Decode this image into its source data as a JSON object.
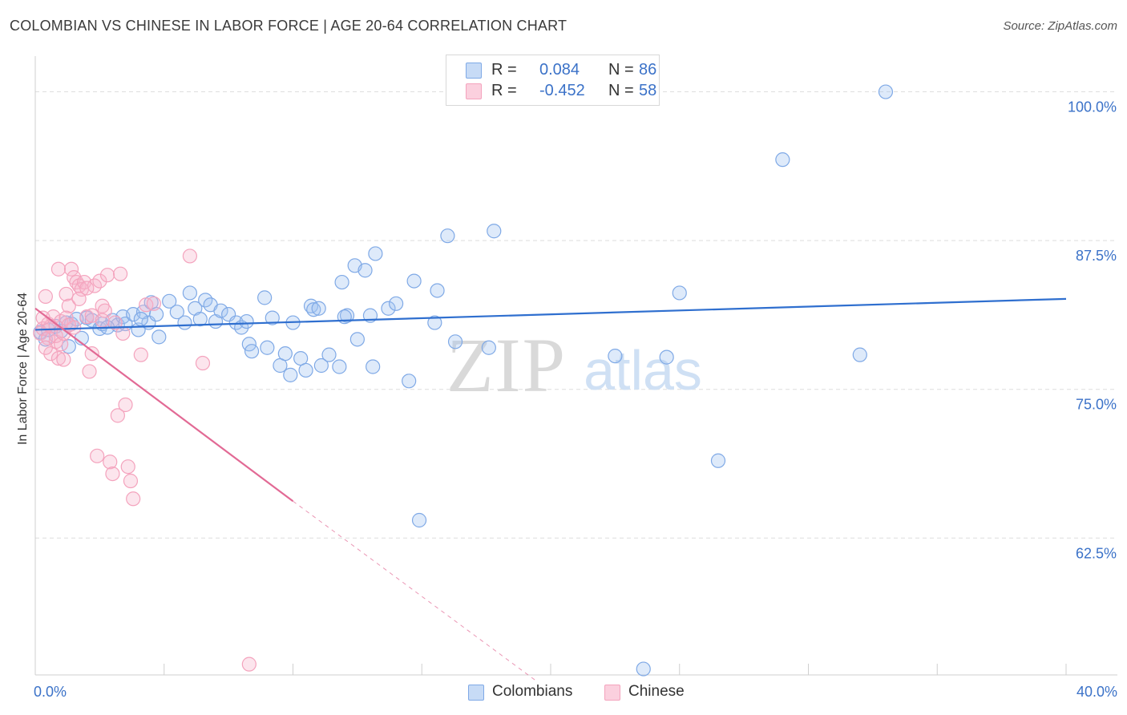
{
  "header": {
    "title": "COLOMBIAN VS CHINESE IN LABOR FORCE | AGE 20-64 CORRELATION CHART",
    "source": "Source: ZipAtlas.com"
  },
  "watermark": {
    "zip": "ZIP",
    "atlas": "atlas"
  },
  "legend_top": [
    {
      "r_label": "R =",
      "r_value": "0.084",
      "n_label": "N =",
      "n_value": "86"
    },
    {
      "r_label": "R =",
      "r_value": "-0.452",
      "n_label": "N =",
      "n_value": "58"
    }
  ],
  "legend_bottom": {
    "colombians": "Colombians",
    "chinese": "Chinese"
  },
  "chart_data": {
    "type": "scatter",
    "xlabel": "",
    "ylabel": "In Labor Force | Age 20-64",
    "xlim": [
      0,
      40
    ],
    "ylim": [
      51,
      103
    ],
    "x_tick_labels": [
      "0.0%",
      "40.0%"
    ],
    "y_ticks": [
      62.5,
      75.0,
      87.5,
      100.0
    ],
    "y_tick_labels": [
      "62.5%",
      "75.0%",
      "87.5%",
      "100.0%"
    ],
    "grid": true,
    "colors": {
      "colombians": "#7fa9e6",
      "chinese": "#f4a3bd",
      "trend_blue": "#2f6fcf",
      "trend_pink": "#e26a95",
      "tick_text": "#3b72c8"
    },
    "series": [
      {
        "name": "Colombians",
        "points": [
          [
            0.2,
            79.8
          ],
          [
            0.4,
            79.2
          ],
          [
            0.5,
            80.0
          ],
          [
            0.8,
            80.3
          ],
          [
            1.0,
            79.9
          ],
          [
            1.2,
            80.6
          ],
          [
            1.4,
            80.5
          ],
          [
            1.3,
            78.6
          ],
          [
            1.8,
            79.3
          ],
          [
            2.0,
            81.0
          ],
          [
            2.2,
            80.8
          ],
          [
            2.5,
            80.1
          ],
          [
            2.6,
            80.5
          ],
          [
            3.0,
            80.8
          ],
          [
            3.2,
            80.4
          ],
          [
            3.4,
            81.1
          ],
          [
            3.5,
            80.5
          ],
          [
            3.8,
            81.3
          ],
          [
            4.0,
            80.0
          ],
          [
            4.2,
            81.5
          ],
          [
            4.4,
            80.6
          ],
          [
            4.5,
            82.3
          ],
          [
            4.7,
            81.3
          ],
          [
            4.8,
            79.4
          ],
          [
            5.2,
            82.4
          ],
          [
            5.5,
            81.5
          ],
          [
            5.8,
            80.6
          ],
          [
            6.0,
            83.1
          ],
          [
            6.2,
            81.8
          ],
          [
            6.4,
            80.9
          ],
          [
            6.6,
            82.5
          ],
          [
            6.8,
            82.1
          ],
          [
            7.0,
            80.7
          ],
          [
            7.2,
            81.6
          ],
          [
            7.5,
            81.3
          ],
          [
            7.8,
            80.6
          ],
          [
            8.0,
            80.2
          ],
          [
            8.2,
            80.7
          ],
          [
            8.3,
            78.8
          ],
          [
            8.4,
            78.2
          ],
          [
            8.9,
            82.7
          ],
          [
            9.0,
            78.5
          ],
          [
            9.2,
            81.0
          ],
          [
            9.5,
            77.0
          ],
          [
            9.7,
            78.0
          ],
          [
            9.9,
            76.2
          ],
          [
            10.0,
            80.6
          ],
          [
            10.3,
            77.6
          ],
          [
            10.5,
            76.6
          ],
          [
            10.7,
            82.0
          ],
          [
            10.8,
            81.7
          ],
          [
            11.0,
            81.8
          ],
          [
            11.1,
            77.0
          ],
          [
            11.4,
            77.9
          ],
          [
            11.8,
            76.9
          ],
          [
            11.9,
            84.0
          ],
          [
            12.1,
            81.2
          ],
          [
            12.4,
            85.4
          ],
          [
            12.5,
            79.2
          ],
          [
            12.8,
            85.0
          ],
          [
            13.0,
            81.2
          ],
          [
            13.1,
            76.9
          ],
          [
            13.2,
            86.4
          ],
          [
            13.7,
            81.8
          ],
          [
            14.0,
            82.2
          ],
          [
            14.5,
            75.7
          ],
          [
            14.7,
            84.1
          ],
          [
            14.9,
            64.0
          ],
          [
            15.5,
            80.6
          ],
          [
            15.6,
            83.3
          ],
          [
            16.0,
            87.9
          ],
          [
            16.3,
            79.0
          ],
          [
            17.6,
            78.5
          ],
          [
            17.8,
            88.3
          ],
          [
            22.5,
            77.8
          ],
          [
            23.6,
            51.5
          ],
          [
            24.5,
            77.7
          ],
          [
            25.0,
            83.1
          ],
          [
            26.5,
            69.0
          ],
          [
            29.0,
            94.3
          ],
          [
            32.0,
            77.9
          ],
          [
            33.0,
            100.0
          ],
          [
            1.6,
            80.9
          ],
          [
            2.8,
            80.2
          ],
          [
            4.1,
            80.9
          ],
          [
            12.0,
            81.1
          ]
        ]
      },
      {
        "name": "Chinese",
        "points": [
          [
            0.2,
            79.7
          ],
          [
            0.3,
            80.1
          ],
          [
            0.4,
            82.8
          ],
          [
            0.5,
            80.5
          ],
          [
            0.6,
            78.0
          ],
          [
            0.7,
            81.1
          ],
          [
            0.8,
            79.0
          ],
          [
            0.9,
            77.6
          ],
          [
            0.9,
            85.1
          ],
          [
            1.0,
            80.7
          ],
          [
            1.1,
            77.5
          ],
          [
            1.2,
            83.0
          ],
          [
            1.3,
            82.0
          ],
          [
            1.4,
            85.1
          ],
          [
            1.5,
            84.4
          ],
          [
            1.6,
            84.0
          ],
          [
            1.7,
            83.7
          ],
          [
            1.8,
            83.4
          ],
          [
            1.9,
            84.0
          ],
          [
            2.0,
            81.1
          ],
          [
            2.1,
            76.5
          ],
          [
            2.2,
            78.0
          ],
          [
            2.3,
            83.7
          ],
          [
            2.4,
            69.4
          ],
          [
            2.5,
            84.1
          ],
          [
            2.6,
            82.0
          ],
          [
            2.7,
            81.6
          ],
          [
            2.8,
            84.6
          ],
          [
            2.9,
            68.9
          ],
          [
            3.0,
            67.9
          ],
          [
            3.1,
            80.6
          ],
          [
            3.2,
            72.8
          ],
          [
            3.3,
            84.7
          ],
          [
            3.4,
            79.7
          ],
          [
            3.5,
            73.7
          ],
          [
            3.6,
            68.5
          ],
          [
            3.7,
            67.3
          ],
          [
            3.8,
            65.8
          ],
          [
            4.1,
            77.9
          ],
          [
            4.3,
            82.1
          ],
          [
            4.6,
            82.2
          ],
          [
            6.0,
            86.2
          ],
          [
            6.5,
            77.2
          ],
          [
            8.3,
            51.9
          ],
          [
            0.5,
            79.3
          ],
          [
            0.6,
            80.3
          ],
          [
            0.8,
            79.5
          ],
          [
            1.0,
            78.8
          ],
          [
            1.2,
            81.0
          ],
          [
            1.5,
            80.2
          ],
          [
            1.7,
            82.6
          ],
          [
            2.0,
            83.5
          ],
          [
            2.2,
            81.2
          ],
          [
            2.6,
            80.8
          ],
          [
            0.3,
            81.0
          ],
          [
            0.4,
            78.5
          ],
          [
            1.1,
            79.7
          ],
          [
            1.3,
            80.4
          ]
        ]
      }
    ],
    "trend_lines": [
      {
        "series": "Colombians",
        "x": [
          0.0,
          40.0
        ],
        "y": [
          80.0,
          82.6
        ]
      },
      {
        "series": "Chinese",
        "x": [
          0.0,
          10.0
        ],
        "y": [
          81.8,
          65.6
        ],
        "dashed_extension_to": [
          19.5,
          50.4
        ]
      }
    ]
  }
}
